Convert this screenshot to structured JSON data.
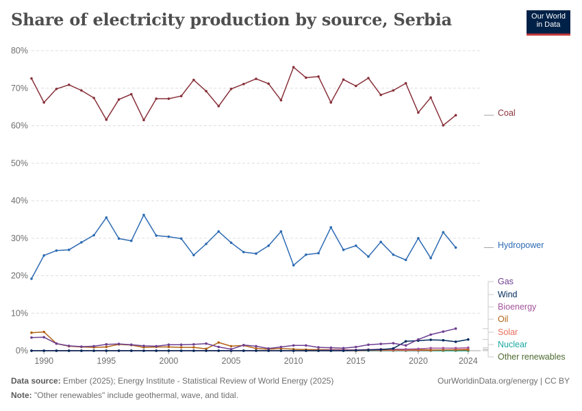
{
  "title": "Share of electricity production by source, Serbia",
  "logo": {
    "line1": "Our World",
    "line2": "in Data"
  },
  "footer": {
    "source_label": "Data source:",
    "source_text": "Ember (2025); Energy Institute - Statistical Review of World Energy (2025)",
    "note_label": "Note:",
    "note_text": "\"Other renewables\" include geothermal, wave, and tidal.",
    "url": "OurWorldinData.org/energy | CC BY"
  },
  "chart_data": {
    "type": "line",
    "title": "Share of electricity production by source, Serbia",
    "xlabel": "",
    "ylabel": "",
    "xlim": [
      1989,
      2025
    ],
    "ylim": [
      0,
      80
    ],
    "y_ticks": [
      0,
      10,
      20,
      30,
      40,
      50,
      60,
      70,
      80
    ],
    "y_tick_labels": [
      "0%",
      "10%",
      "20%",
      "30%",
      "40%",
      "50%",
      "60%",
      "70%",
      "80%"
    ],
    "x_ticks": [
      1990,
      1995,
      2000,
      2005,
      2010,
      2015,
      2020,
      2024
    ],
    "x_tick_labels": [
      "1990",
      "1995",
      "2000",
      "2005",
      "2010",
      "2015",
      "2020",
      "2024"
    ],
    "grid": true,
    "x": [
      1989,
      1990,
      1991,
      1992,
      1993,
      1994,
      1995,
      1996,
      1997,
      1998,
      1999,
      2000,
      2001,
      2002,
      2003,
      2004,
      2005,
      2006,
      2007,
      2008,
      2009,
      2010,
      2011,
      2012,
      2013,
      2014,
      2015,
      2016,
      2017,
      2018,
      2019,
      2020,
      2021,
      2022,
      2023,
      2024,
      2025
    ],
    "series": [
      {
        "name": "Coal",
        "color": "#883039",
        "values": [
          72.6,
          66.2,
          69.8,
          70.9,
          69.4,
          67.4,
          61.6,
          67.0,
          68.4,
          61.5,
          67.2,
          67.2,
          67.9,
          72.2,
          69.2,
          65.2,
          69.8,
          71.1,
          72.5,
          71.2,
          66.8,
          75.6,
          72.8,
          73.1,
          66.2,
          72.3,
          70.6,
          72.7,
          68.2,
          69.4,
          71.3,
          63.5,
          67.5,
          60.1,
          62.8,
          null,
          null
        ]
      },
      {
        "name": "Hydropower",
        "color": "#2c6ab3",
        "values": [
          19.2,
          25.4,
          26.7,
          26.9,
          28.9,
          30.8,
          35.5,
          29.9,
          29.3,
          36.2,
          30.7,
          30.4,
          29.9,
          25.5,
          28.5,
          31.8,
          28.8,
          26.3,
          25.9,
          28.0,
          31.8,
          22.8,
          25.6,
          26.0,
          32.9,
          26.9,
          28.0,
          25.1,
          29.0,
          25.6,
          24.2,
          30.0,
          24.7,
          31.6,
          27.5,
          null,
          null
        ]
      },
      {
        "name": "Gas",
        "color": "#6d3e91",
        "values": [
          3.5,
          3.6,
          1.9,
          1.3,
          1.1,
          1.2,
          1.7,
          1.8,
          1.6,
          1.3,
          1.2,
          1.6,
          1.6,
          1.7,
          1.9,
          1.0,
          0.4,
          1.5,
          1.2,
          0.6,
          1.0,
          1.4,
          1.4,
          0.9,
          0.8,
          0.7,
          1.0,
          1.6,
          1.8,
          2.0,
          1.4,
          3.0,
          4.3,
          5.1,
          5.9,
          null,
          null
        ]
      },
      {
        "name": "Wind",
        "color": "#00295b",
        "values": [
          0,
          0,
          0,
          0,
          0,
          0,
          0,
          0,
          0,
          0,
          0,
          0,
          0,
          0,
          0,
          0,
          0,
          0,
          0,
          0,
          0,
          0,
          0,
          0,
          0,
          0,
          0.1,
          0.2,
          0.3,
          0.6,
          2.5,
          2.7,
          2.9,
          2.8,
          2.4,
          3.0,
          null
        ]
      },
      {
        "name": "Bioenergy",
        "color": "#a2559c",
        "values": [
          0,
          0,
          0,
          0,
          0,
          0,
          0,
          0,
          0,
          0,
          0,
          0,
          0,
          0,
          0,
          0,
          0,
          0,
          0,
          0,
          0,
          0,
          0,
          0.1,
          0.2,
          0.2,
          0.2,
          0.3,
          0.4,
          0.4,
          0.4,
          0.5,
          0.7,
          0.7,
          0.7,
          0.8,
          null
        ]
      },
      {
        "name": "Oil",
        "color": "#b16214",
        "values": [
          4.8,
          5.0,
          1.9,
          1.2,
          1.0,
          0.9,
          1.0,
          1.7,
          1.5,
          0.9,
          1.0,
          1.0,
          0.9,
          0.9,
          0.5,
          2.2,
          1.2,
          1.4,
          0.6,
          0.4,
          0.6,
          0.4,
          0.3,
          0.3,
          0.3,
          0.3,
          0.2,
          0.3,
          0.3,
          0.3,
          0.3,
          0.3,
          0.2,
          0.2,
          0.2,
          0.2,
          null
        ]
      },
      {
        "name": "Solar",
        "color": "#e56e5a",
        "values": [
          0,
          0,
          0,
          0,
          0,
          0,
          0,
          0,
          0,
          0,
          0,
          0,
          0,
          0,
          0,
          0,
          0,
          0,
          0,
          0,
          0,
          0,
          0,
          0,
          0,
          0,
          0,
          0.1,
          0.1,
          0.1,
          0.1,
          0.1,
          0.1,
          0.2,
          0.3,
          0.4,
          null
        ]
      },
      {
        "name": "Nuclear",
        "color": "#18a8a0",
        "values": [
          0,
          0,
          0,
          0,
          0,
          0,
          0,
          0,
          0,
          0,
          0,
          0,
          0,
          0,
          0,
          0,
          0,
          0,
          0,
          0,
          0,
          0,
          0,
          0,
          0,
          0,
          0,
          0,
          0,
          0,
          0,
          0,
          0,
          0,
          0,
          0,
          null
        ]
      },
      {
        "name": "Other renewables",
        "color": "#4c6a30",
        "values": [
          0,
          0,
          0,
          0,
          0,
          0,
          0,
          0,
          0,
          0,
          0,
          0,
          0,
          0,
          0,
          0,
          0,
          0,
          0,
          0,
          0,
          0,
          0,
          0,
          0,
          0,
          0,
          0,
          0,
          0,
          0,
          0,
          0,
          0,
          0,
          0,
          null
        ]
      }
    ]
  }
}
